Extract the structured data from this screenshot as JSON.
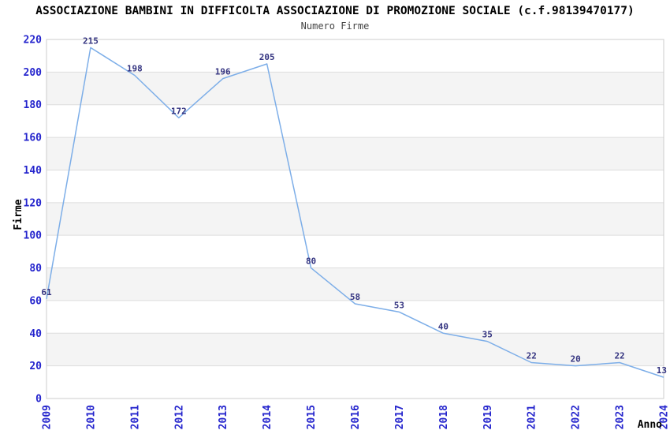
{
  "page": {
    "title": "ASSOCIAZIONE BAMBINI IN DIFFICOLTA ASSOCIAZIONE DI PROMOZIONE SOCIALE (c.f.98139470177)",
    "subtitle": "Numero Firme"
  },
  "chart_data": {
    "type": "line",
    "title": "ASSOCIAZIONE BAMBINI IN DIFFICOLTA ASSOCIAZIONE DI PROMOZIONE SOCIALE (c.f.98139470177)",
    "subtitle": "Numero Firme",
    "xlabel": "Anno",
    "ylabel": "Firme",
    "categories": [
      "2009",
      "2010",
      "2011",
      "2012",
      "2013",
      "2014",
      "2015",
      "2016",
      "2017",
      "2018",
      "2019",
      "2021",
      "2022",
      "2023",
      "2024"
    ],
    "values": [
      61,
      215,
      198,
      172,
      196,
      205,
      80,
      58,
      53,
      40,
      35,
      22,
      20,
      22,
      13
    ],
    "ylim": [
      0,
      220
    ],
    "ytick_step": 20,
    "yticks": [
      0,
      20,
      40,
      60,
      80,
      100,
      120,
      140,
      160,
      180,
      200,
      220
    ],
    "grid": true,
    "legend_position": "none",
    "band_fill_alternating": true,
    "data_labels_visible": true,
    "colors": {
      "line": "#7daee8",
      "tick_label": "#2525cd",
      "data_label": "#333380",
      "band": "#f4f4f4",
      "gridline": "#dddddd",
      "border": "#cccccc",
      "title": "#000000",
      "subtitle": "#444444",
      "axis_title": "#000000",
      "background": "#ffffff"
    }
  }
}
